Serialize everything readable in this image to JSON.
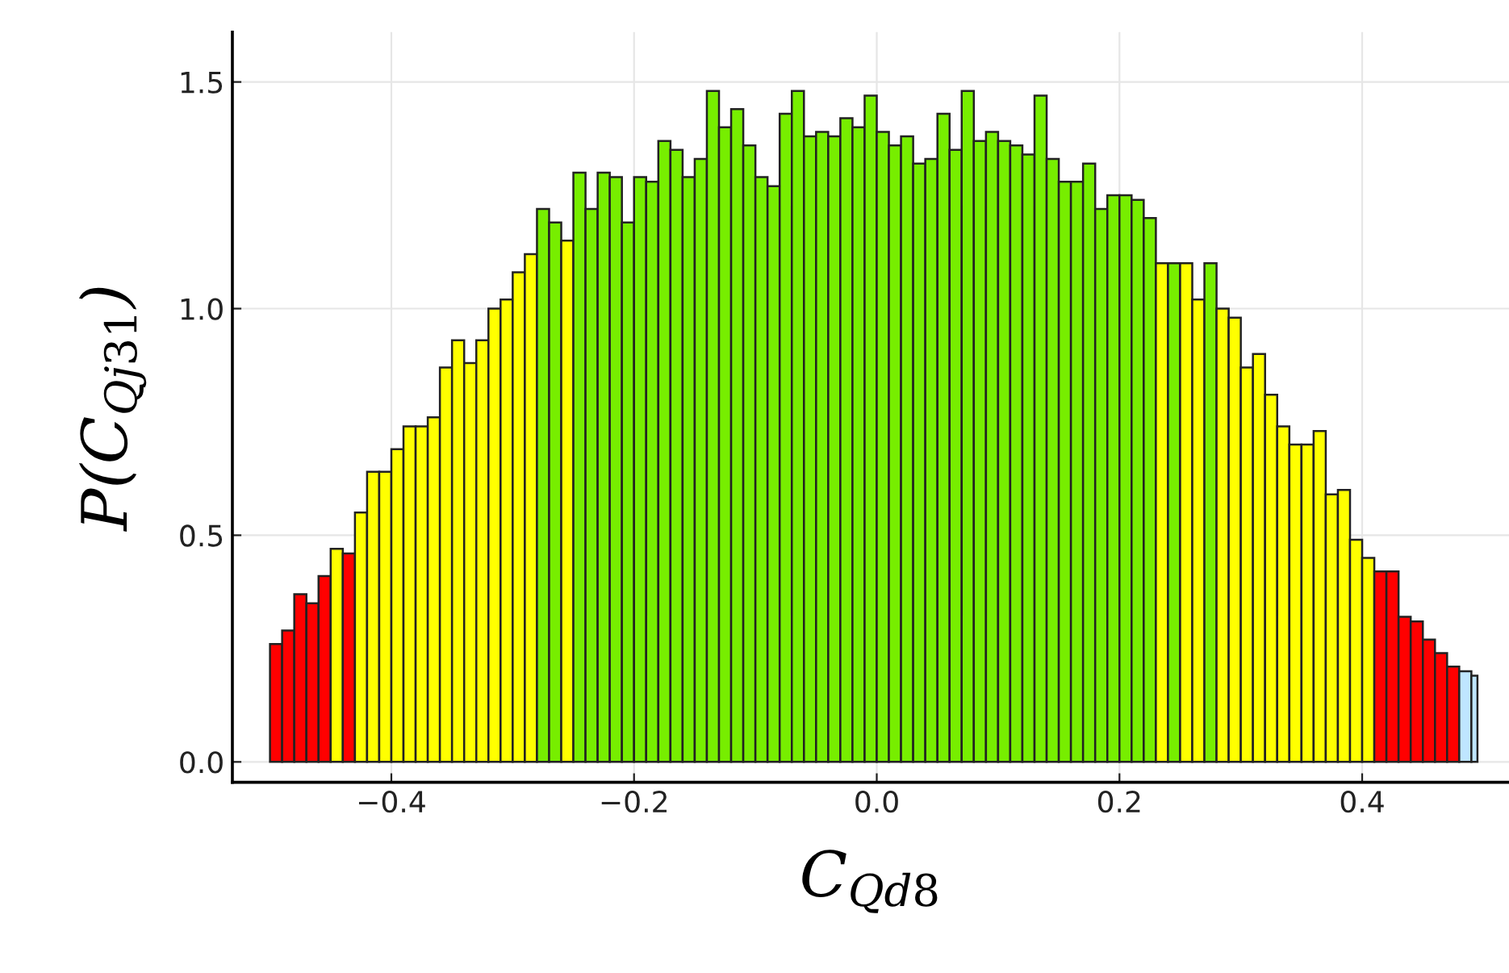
{
  "chart_data": {
    "type": "histogram",
    "xlabel": "C$_{Qd8}$",
    "ylabel": "P(C$_{Qj31}$)",
    "bins": [
      -0.5,
      -0.49,
      -0.48,
      -0.47,
      -0.46,
      -0.45,
      -0.44,
      -0.43,
      -0.42,
      -0.41,
      -0.4,
      -0.39,
      -0.38,
      -0.37,
      -0.36,
      -0.35,
      -0.34,
      -0.33,
      -0.32,
      -0.31,
      -0.3,
      -0.29,
      -0.28,
      -0.27,
      -0.26,
      -0.25,
      -0.24,
      -0.23,
      -0.22,
      -0.21,
      -0.2,
      -0.19,
      -0.18,
      -0.17,
      -0.16,
      -0.15,
      -0.14,
      -0.13,
      -0.12,
      -0.11,
      -0.1,
      -0.09,
      -0.08,
      -0.07,
      -0.06,
      -0.05,
      -0.04,
      -0.03,
      -0.02,
      -0.01,
      0.0,
      0.01,
      0.02,
      0.03,
      0.04,
      0.05,
      0.06,
      0.07,
      0.08,
      0.09,
      0.1,
      0.11,
      0.12,
      0.13,
      0.14,
      0.15,
      0.16,
      0.17,
      0.18,
      0.19,
      0.2,
      0.21,
      0.22,
      0.23,
      0.24,
      0.25,
      0.26,
      0.27,
      0.28,
      0.29,
      0.3,
      0.31,
      0.32,
      0.33,
      0.34,
      0.35,
      0.36,
      0.37,
      0.38,
      0.39,
      0.4,
      0.41,
      0.42,
      0.43,
      0.44,
      0.45,
      0.46,
      0.47,
      0.48,
      0.49,
      0.495
    ],
    "values": [
      0.26,
      0.29,
      0.37,
      0.35,
      0.41,
      0.47,
      0.46,
      0.55,
      0.64,
      0.64,
      0.69,
      0.74,
      0.74,
      0.76,
      0.87,
      0.93,
      0.88,
      0.93,
      1.0,
      1.02,
      1.08,
      1.12,
      1.22,
      1.19,
      1.15,
      1.3,
      1.22,
      1.3,
      1.29,
      1.19,
      1.29,
      1.28,
      1.37,
      1.35,
      1.29,
      1.33,
      1.48,
      1.4,
      1.44,
      1.36,
      1.29,
      1.27,
      1.43,
      1.48,
      1.38,
      1.39,
      1.38,
      1.42,
      1.4,
      1.47,
      1.39,
      1.36,
      1.38,
      1.32,
      1.33,
      1.43,
      1.35,
      1.48,
      1.37,
      1.39,
      1.37,
      1.36,
      1.34,
      1.47,
      1.33,
      1.28,
      1.28,
      1.32,
      1.22,
      1.25,
      1.25,
      1.24,
      1.2,
      1.1,
      1.1,
      1.1,
      1.02,
      1.1,
      1.0,
      0.98,
      0.87,
      0.9,
      0.81,
      0.74,
      0.7,
      0.7,
      0.73,
      0.59,
      0.6,
      0.49,
      0.45,
      0.42,
      0.42,
      0.32,
      0.31,
      0.27,
      0.24,
      0.21,
      0.2,
      0.19
    ],
    "colors": [
      "#ff0000",
      "#ff0000",
      "#ff0000",
      "#ff0000",
      "#ff0000",
      "#ffff00",
      "#ff0000",
      "#ffff00",
      "#ffff00",
      "#ffff00",
      "#ffff00",
      "#ffff00",
      "#ffff00",
      "#ffff00",
      "#ffff00",
      "#ffff00",
      "#ffff00",
      "#ffff00",
      "#ffff00",
      "#ffff00",
      "#ffff00",
      "#ffff00",
      "#77ee00",
      "#77ee00",
      "#ffff00",
      "#77ee00",
      "#77ee00",
      "#77ee00",
      "#77ee00",
      "#77ee00",
      "#77ee00",
      "#77ee00",
      "#77ee00",
      "#77ee00",
      "#77ee00",
      "#77ee00",
      "#77ee00",
      "#77ee00",
      "#77ee00",
      "#77ee00",
      "#77ee00",
      "#77ee00",
      "#77ee00",
      "#77ee00",
      "#77ee00",
      "#77ee00",
      "#77ee00",
      "#77ee00",
      "#77ee00",
      "#77ee00",
      "#77ee00",
      "#77ee00",
      "#77ee00",
      "#77ee00",
      "#77ee00",
      "#77ee00",
      "#77ee00",
      "#77ee00",
      "#77ee00",
      "#77ee00",
      "#77ee00",
      "#77ee00",
      "#77ee00",
      "#77ee00",
      "#77ee00",
      "#77ee00",
      "#77ee00",
      "#77ee00",
      "#77ee00",
      "#77ee00",
      "#77ee00",
      "#77ee00",
      "#77ee00",
      "#ffff00",
      "#77ee00",
      "#ffff00",
      "#ffff00",
      "#77ee00",
      "#ffff00",
      "#ffff00",
      "#ffff00",
      "#ffff00",
      "#ffff00",
      "#ffff00",
      "#ffff00",
      "#ffff00",
      "#ffff00",
      "#ffff00",
      "#ffff00",
      "#ffff00",
      "#ffff00",
      "#ff0000",
      "#ff0000",
      "#ff0000",
      "#ff0000",
      "#ff0000",
      "#ff0000",
      "#ff0000",
      "#bfe6ff",
      "#bfe6ff"
    ],
    "xlim": [
      -0.531,
      0.521
    ],
    "ylim": [
      -0.045,
      1.61
    ],
    "xticks": [
      {
        "value": -0.4,
        "label": "−0.4"
      },
      {
        "value": -0.2,
        "label": "−0.2"
      },
      {
        "value": 0.0,
        "label": "0.0"
      },
      {
        "value": 0.2,
        "label": "0.2"
      },
      {
        "value": 0.4,
        "label": "0.4"
      }
    ],
    "yticks": [
      {
        "value": 0.0,
        "label": "0.0"
      },
      {
        "value": 0.5,
        "label": "0.5"
      },
      {
        "value": 1.0,
        "label": "1.0"
      },
      {
        "value": 1.5,
        "label": "1.5"
      }
    ],
    "grid": true
  }
}
